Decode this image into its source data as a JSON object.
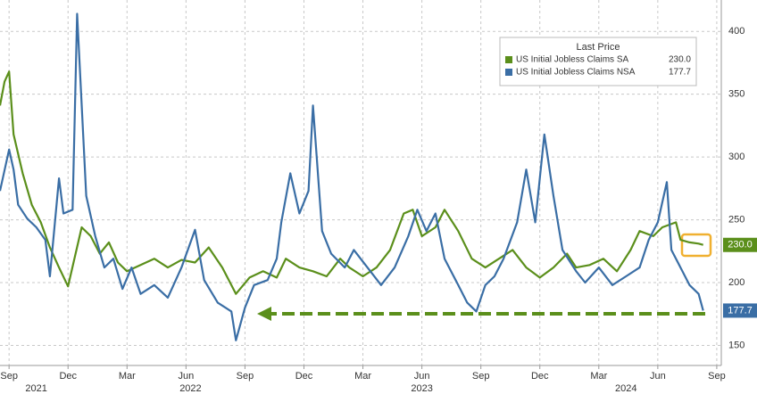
{
  "chart_data": {
    "type": "line",
    "legend_title": "Last Price",
    "series": [
      {
        "name": "US Initial Jobless Claims SA",
        "color": "#5b8f1b",
        "last_label": "230.0",
        "x": [
          -2,
          -1,
          0,
          1,
          3,
          5,
          7,
          9,
          11,
          13,
          16,
          18,
          20,
          22,
          24,
          26,
          29,
          32,
          35,
          38,
          41,
          44,
          47,
          50,
          53,
          56,
          59,
          61,
          64,
          67,
          70,
          73,
          75,
          78,
          81,
          84,
          87,
          89,
          91,
          94,
          96,
          99,
          102,
          105,
          108,
          111,
          114,
          117,
          120,
          123,
          125,
          128,
          131,
          134,
          137,
          139,
          142,
          144,
          147,
          148,
          150,
          152,
          153
        ],
        "values": [
          341,
          360,
          368,
          318,
          287,
          262,
          248,
          228,
          212,
          197,
          244,
          237,
          223,
          232,
          216,
          209,
          214,
          219,
          212,
          218,
          216,
          228,
          212,
          191,
          204,
          209,
          204,
          219,
          212,
          209,
          205,
          219,
          212,
          205,
          212,
          226,
          255,
          258,
          237,
          244,
          258,
          241,
          219,
          212,
          219,
          226,
          212,
          204,
          212,
          223,
          212,
          214,
          219,
          209,
          226,
          241,
          237,
          244,
          248,
          234,
          232,
          231,
          230
        ]
      },
      {
        "name": "US Initial Jobless Claims NSA",
        "color": "#3a6ea5",
        "last_label": "177.7",
        "x": [
          -2,
          0,
          1,
          2,
          4,
          6,
          8,
          9,
          11,
          12,
          14,
          15,
          17,
          19,
          21,
          23,
          25,
          27,
          29,
          32,
          35,
          38,
          41,
          43,
          46,
          49,
          50,
          52,
          54,
          57,
          59,
          60,
          62,
          64,
          66,
          67,
          69,
          71,
          74,
          76,
          79,
          82,
          85,
          88,
          90,
          92,
          94,
          96,
          99,
          101,
          103,
          105,
          107,
          109,
          112,
          114,
          116,
          118,
          120,
          122,
          125,
          127,
          130,
          133,
          136,
          139,
          141,
          143,
          145,
          146,
          148,
          150,
          152,
          153
        ],
        "values": [
          273,
          306,
          290,
          262,
          251,
          244,
          234,
          205,
          283,
          255,
          258,
          414,
          269,
          237,
          212,
          219,
          195,
          212,
          191,
          198,
          188,
          212,
          242,
          202,
          184,
          177,
          154,
          180,
          198,
          202,
          219,
          248,
          287,
          255,
          273,
          341,
          241,
          223,
          212,
          226,
          212,
          198,
          212,
          237,
          258,
          241,
          255,
          219,
          198,
          184,
          177,
          198,
          205,
          219,
          248,
          290,
          248,
          318,
          269,
          226,
          209,
          200,
          212,
          198,
          205,
          212,
          234,
          248,
          280,
          226,
          212,
          198,
          191,
          177.7
        ]
      }
    ],
    "xlim": [
      -2,
      157
    ],
    "xticks": [
      {
        "value": 0,
        "label": "Sep"
      },
      {
        "value": 13,
        "label": "Dec"
      },
      {
        "value": 26,
        "label": "Mar"
      },
      {
        "value": 39,
        "label": "Jun"
      },
      {
        "value": 52,
        "label": "Sep"
      },
      {
        "value": 65,
        "label": "Dec"
      },
      {
        "value": 78,
        "label": "Mar"
      },
      {
        "value": 91,
        "label": "Jun"
      },
      {
        "value": 104,
        "label": "Sep"
      },
      {
        "value": 117,
        "label": "Dec"
      },
      {
        "value": 130,
        "label": "Mar"
      },
      {
        "value": 143,
        "label": "Jun"
      },
      {
        "value": 156,
        "label": "Sep"
      }
    ],
    "year_ticks": [
      {
        "value": 6,
        "label": "2021"
      },
      {
        "value": 40,
        "label": "2022"
      },
      {
        "value": 91,
        "label": "2023"
      },
      {
        "value": 136,
        "label": "2024"
      }
    ],
    "ylim": [
      134,
      425
    ],
    "yticks": [
      150,
      200,
      250,
      300,
      350,
      400
    ],
    "grid": true
  }
}
